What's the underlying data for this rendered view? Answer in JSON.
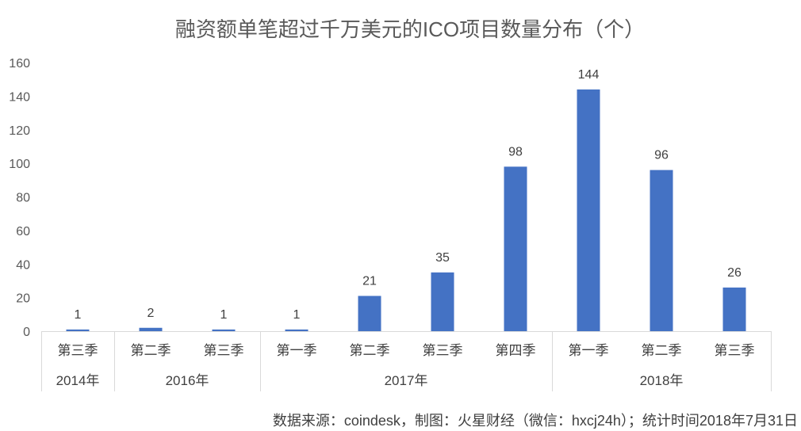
{
  "chart_data": {
    "type": "bar",
    "title": "融资额单笔超过千万美元的ICO项目数量分布（个）",
    "categories": [
      "第三季",
      "第二季",
      "第三季",
      "第一季",
      "第二季",
      "第三季",
      "第四季",
      "第一季",
      "第二季",
      "第三季"
    ],
    "groups": [
      {
        "label": "2014年",
        "count": 1
      },
      {
        "label": "2016年",
        "count": 2
      },
      {
        "label": "2017年",
        "count": 4
      },
      {
        "label": "2018年",
        "count": 3
      }
    ],
    "values": [
      1,
      2,
      1,
      1,
      21,
      35,
      98,
      144,
      96,
      26
    ],
    "y_ticks": [
      0,
      20,
      40,
      60,
      80,
      100,
      120,
      140,
      160
    ],
    "ylim": [
      0,
      160
    ],
    "grid": false,
    "bar_color": "#4472C4",
    "data_labels": true
  },
  "source_note": "数据来源：coindesk，制图：火星财经（微信：hxcj24h）；统计时间2018年7月31日"
}
